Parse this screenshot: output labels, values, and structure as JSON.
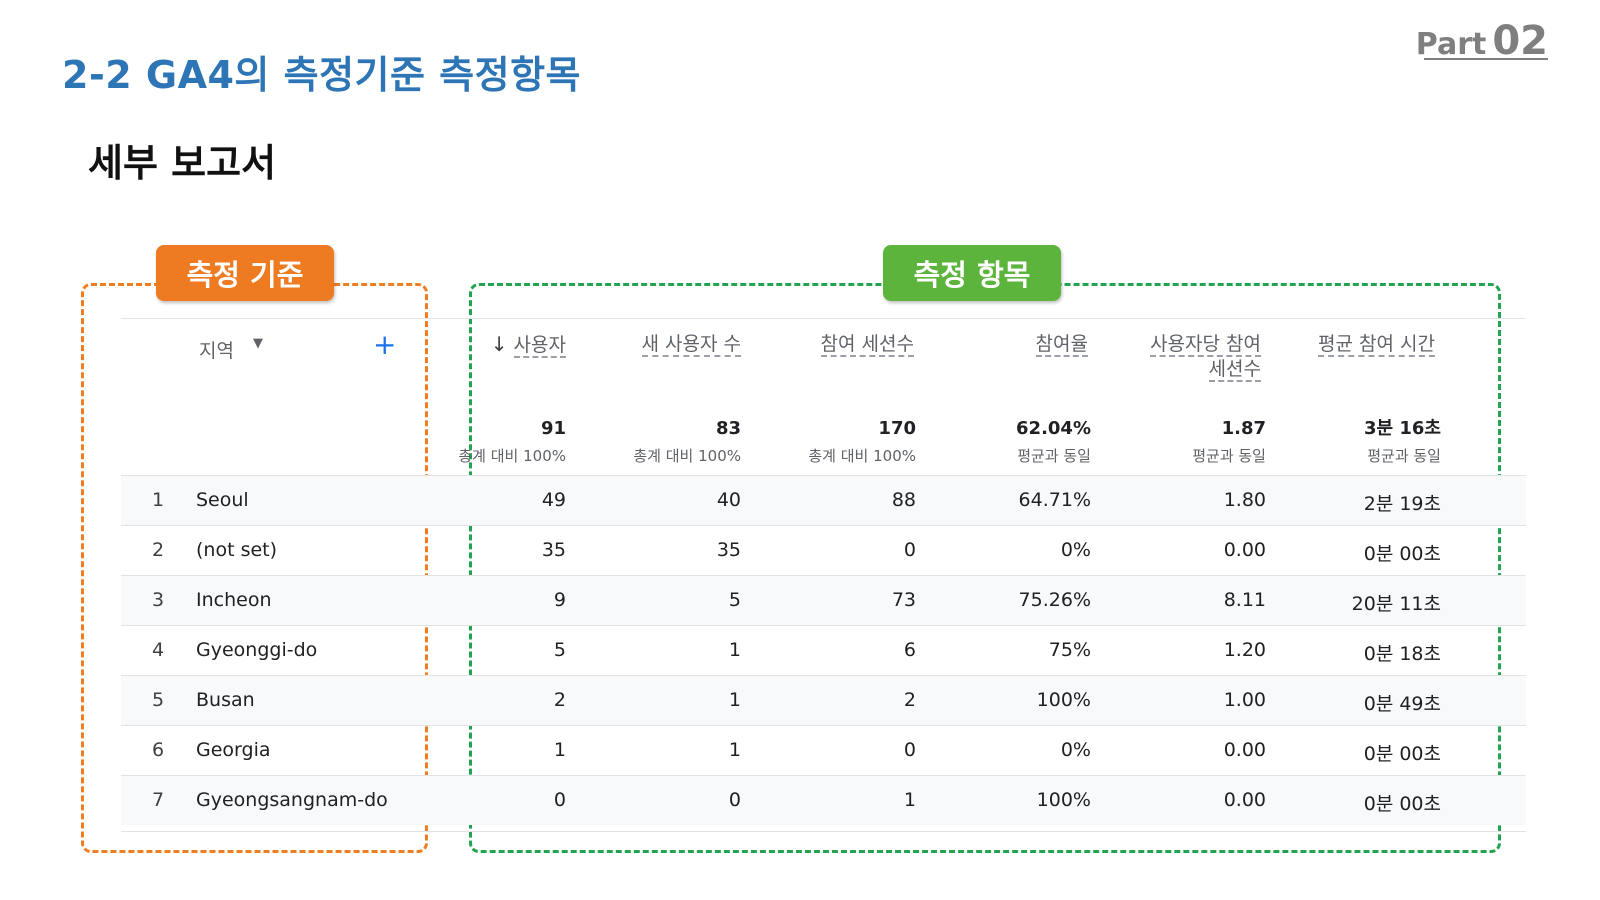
{
  "header": {
    "part_label": "Part",
    "part_number": "02",
    "title": "2-2 GA4의 측정기준 측정항목",
    "subtitle": "세부 보고서"
  },
  "tags": {
    "dimension": "측정 기준",
    "metrics": "측정 항목"
  },
  "table": {
    "dimension_header": "지역",
    "columns": [
      "사용자",
      "새 사용자 수",
      "참여 세션수",
      "참여율",
      "사용자당 참여 세션수",
      "평균 참여 시간"
    ],
    "totals": [
      {
        "value": "91",
        "sub": "총계 대비 100%"
      },
      {
        "value": "83",
        "sub": "총계 대비 100%"
      },
      {
        "value": "170",
        "sub": "총계 대비 100%"
      },
      {
        "value": "62.04%",
        "sub": "평균과 동일"
      },
      {
        "value": "1.87",
        "sub": "평균과 동일"
      },
      {
        "value": "3분 16초",
        "sub": "평균과 동일"
      }
    ],
    "rows": [
      {
        "rank": "1",
        "region": "Seoul",
        "cells": [
          "49",
          "40",
          "88",
          "64.71%",
          "1.80",
          "2분 19초"
        ]
      },
      {
        "rank": "2",
        "region": "(not set)",
        "cells": [
          "35",
          "35",
          "0",
          "0%",
          "0.00",
          "0분 00초"
        ]
      },
      {
        "rank": "3",
        "region": "Incheon",
        "cells": [
          "9",
          "5",
          "73",
          "75.26%",
          "8.11",
          "20분 11초"
        ]
      },
      {
        "rank": "4",
        "region": "Gyeonggi-do",
        "cells": [
          "5",
          "1",
          "6",
          "75%",
          "1.20",
          "0분 18초"
        ]
      },
      {
        "rank": "5",
        "region": "Busan",
        "cells": [
          "2",
          "1",
          "2",
          "100%",
          "1.00",
          "0분 49초"
        ]
      },
      {
        "rank": "6",
        "region": "Georgia",
        "cells": [
          "1",
          "1",
          "0",
          "0%",
          "0.00",
          "0분 00초"
        ]
      },
      {
        "rank": "7",
        "region": "Gyeongsangnam-do",
        "cells": [
          "0",
          "0",
          "1",
          "100%",
          "0.00",
          "0분 00초"
        ]
      }
    ]
  },
  "colors": {
    "title": "#2e75b6",
    "dimension_accent": "#ef7d22",
    "metrics_accent": "#22a350",
    "add_button": "#1a73e8"
  },
  "icons": {
    "sort": "arrow-down-icon",
    "dropdown": "caret-down-icon",
    "add": "plus-icon"
  }
}
